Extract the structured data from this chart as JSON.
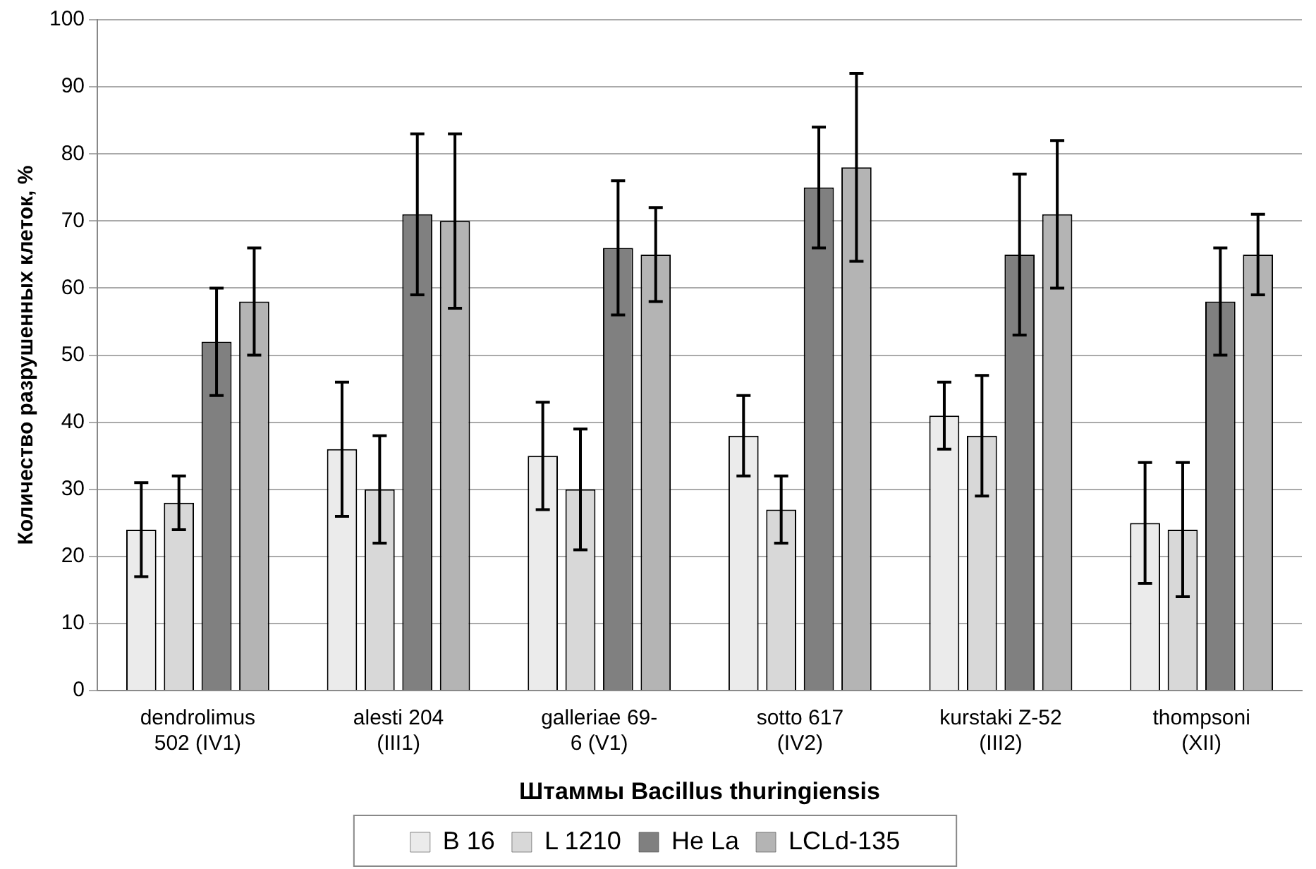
{
  "chart_data": {
    "type": "bar",
    "xlabel": "Штаммы Bacillus thuringiensis",
    "ylabel": "Количество разрушенных клеток, %",
    "categories": [
      "dendrolimus 502 (IV1)",
      "alesti 204 (III1)",
      "galleriae 69-6 (V1)",
      "sotto 617 (IV2)",
      "kurstaki Z-52 (III2)",
      "thompsoni (XII)"
    ],
    "series": [
      {
        "name": "B 16",
        "color": "#ebebeb",
        "values": [
          24,
          36,
          35,
          38,
          41,
          25
        ],
        "errors": [
          [
            17,
            31
          ],
          [
            26,
            46
          ],
          [
            27,
            43
          ],
          [
            32,
            44
          ],
          [
            36,
            46
          ],
          [
            16,
            34
          ]
        ]
      },
      {
        "name": "L 1210",
        "color": "#d8d8d8",
        "values": [
          28,
          30,
          30,
          27,
          38,
          24
        ],
        "errors": [
          [
            24,
            32
          ],
          [
            22,
            38
          ],
          [
            21,
            39
          ],
          [
            22,
            32
          ],
          [
            29,
            47
          ],
          [
            14,
            34
          ]
        ]
      },
      {
        "name": "He La",
        "color": "#808080",
        "values": [
          52,
          71,
          66,
          75,
          65,
          58
        ],
        "errors": [
          [
            44,
            60
          ],
          [
            59,
            83
          ],
          [
            56,
            76
          ],
          [
            66,
            84
          ],
          [
            53,
            77
          ],
          [
            50,
            66
          ]
        ]
      },
      {
        "name": "LCLd-135",
        "color": "#b4b4b4",
        "values": [
          58,
          70,
          65,
          78,
          71,
          65
        ],
        "errors": [
          [
            50,
            66
          ],
          [
            57,
            83
          ],
          [
            58,
            72
          ],
          [
            64,
            92
          ],
          [
            60,
            82
          ],
          [
            59,
            71
          ]
        ]
      }
    ],
    "ylim": [
      0,
      100
    ],
    "yticks": [
      0,
      10,
      20,
      30,
      40,
      50,
      60,
      70,
      80,
      90,
      100
    ],
    "grid": "y",
    "legend": "bottom"
  }
}
